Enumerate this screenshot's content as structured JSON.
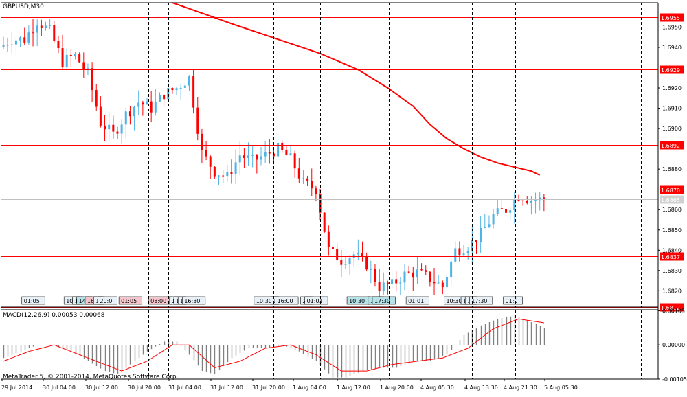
{
  "window": {
    "symbol_label": "GBPUSD,M30",
    "copyright": "MetaTrader 5, © 2001-2014, MetaQuotes Software Corp."
  },
  "colors": {
    "background": "#ffffff",
    "bull": "#4fb3e6",
    "bear": "#ff0000",
    "level_line": "#ff0000",
    "ma_line": "#ff0000",
    "current_price_line": "#c0c0c0",
    "macd_histogram": "#808080",
    "macd_signal": "#ff0000",
    "grid": "#000000"
  },
  "chart_data": [
    {
      "type": "candlestick",
      "pane": "price",
      "ylim": [
        1.6812,
        1.6962
      ],
      "y_ticks": [
        "1.6950",
        "1.6940",
        "1.6920",
        "1.6910",
        "1.6900",
        "1.6880",
        "1.6860",
        "1.6850",
        "1.6840",
        "1.6830",
        "1.6820"
      ],
      "x_labels": [
        "29 Jul 2014",
        "30 Jul 04:00",
        "30 Jul 12:00",
        "30 Jul 20:00",
        "31 Jul 04:00",
        "31 Jul 12:00",
        "31 Jul 20:00",
        "1 Aug 04:00",
        "1 Aug 12:00",
        "1 Aug 20:00",
        "4 Aug 05:30",
        "4 Aug 13:30",
        "4 Aug 21:30",
        "5 Aug 05:30"
      ],
      "levels": [
        {
          "label": "1.6955",
          "value": 1.6955
        },
        {
          "label": "1.6929",
          "value": 1.6929
        },
        {
          "label": "1.6892",
          "value": 1.6892
        },
        {
          "label": "1.6870",
          "value": 1.687
        },
        {
          "label": "1.6837",
          "value": 1.6837
        },
        {
          "label": "1.6812",
          "value": 1.6812
        }
      ],
      "current_price": {
        "label": "1.6865",
        "value": 1.6865
      },
      "moving_average": {
        "x": [
          40,
          55,
          65,
          75,
          84,
          91,
          97,
          101,
          105,
          109,
          113,
          117,
          121,
          125,
          127
        ],
        "y": [
          1.6962,
          1.6951,
          1.6944,
          1.6937,
          1.6929,
          1.692,
          1.6911,
          1.6902,
          1.6895,
          1.689,
          1.6886,
          1.6883,
          1.6881,
          1.6879,
          1.6877
        ]
      },
      "anchors": [
        [
          0,
          1.694
        ],
        [
          3,
          1.6944
        ],
        [
          6,
          1.6944
        ],
        [
          9,
          1.6953
        ],
        [
          12,
          1.6948
        ],
        [
          15,
          1.6933
        ],
        [
          18,
          1.6936
        ],
        [
          21,
          1.6927
        ],
        [
          24,
          1.6903
        ],
        [
          27,
          1.6897
        ],
        [
          30,
          1.6907
        ],
        [
          33,
          1.6913
        ],
        [
          36,
          1.691
        ],
        [
          39,
          1.6917
        ],
        [
          42,
          1.692
        ],
        [
          45,
          1.6925
        ],
        [
          48,
          1.6888
        ],
        [
          51,
          1.6879
        ],
        [
          54,
          1.6876
        ],
        [
          57,
          1.6887
        ],
        [
          60,
          1.6884
        ],
        [
          63,
          1.6887
        ],
        [
          66,
          1.689
        ],
        [
          69,
          1.6885
        ],
        [
          72,
          1.6873
        ],
        [
          75,
          1.687
        ],
        [
          78,
          1.684
        ],
        [
          81,
          1.6835
        ],
        [
          84,
          1.6838
        ],
        [
          87,
          1.6833
        ],
        [
          90,
          1.6822
        ],
        [
          93,
          1.6823
        ],
        [
          96,
          1.6828
        ],
        [
          99,
          1.6829
        ],
        [
          102,
          1.6826
        ],
        [
          105,
          1.6822
        ],
        [
          108,
          1.684
        ],
        [
          111,
          1.6842
        ],
        [
          114,
          1.6848
        ],
        [
          117,
          1.6857
        ],
        [
          120,
          1.686
        ],
        [
          123,
          1.6867
        ],
        [
          126,
          1.6865
        ],
        [
          128,
          1.6865
        ]
      ],
      "bars": 129
    },
    {
      "type": "histogram+line",
      "pane": "indicator",
      "title": "MACD(12,26,9) 0.00053 0.00068",
      "ylim": [
        -0.00105,
        0.00108
      ],
      "y_ticks": [
        "0.00105",
        "0.00000",
        "-0.00105"
      ],
      "zero_line": 0.0,
      "main_anchors": [
        [
          0,
          -0.0004
        ],
        [
          4,
          -0.0002
        ],
        [
          8,
          0.0
        ],
        [
          12,
          0.0
        ],
        [
          16,
          -0.0002
        ],
        [
          20,
          -0.0005
        ],
        [
          24,
          -0.0008
        ],
        [
          27,
          -0.0009
        ],
        [
          30,
          -0.0006
        ],
        [
          34,
          -0.0002
        ],
        [
          38,
          0.0001
        ],
        [
          41,
          0.0001
        ],
        [
          44,
          -0.0003
        ],
        [
          47,
          -0.0008
        ],
        [
          50,
          -0.0009
        ],
        [
          54,
          -0.0004
        ],
        [
          58,
          -0.0001
        ],
        [
          62,
          -0.0001
        ],
        [
          66,
          0.0
        ],
        [
          70,
          -0.0002
        ],
        [
          74,
          -0.0005
        ],
        [
          78,
          -0.001
        ],
        [
          81,
          -0.001
        ],
        [
          85,
          -0.0008
        ],
        [
          89,
          -0.0007
        ],
        [
          93,
          -0.0007
        ],
        [
          97,
          -0.0005
        ],
        [
          101,
          -0.0005
        ],
        [
          105,
          -0.0003
        ],
        [
          109,
          0.0003
        ],
        [
          113,
          0.0006
        ],
        [
          117,
          0.0008
        ],
        [
          121,
          0.0009
        ],
        [
          125,
          0.0007
        ],
        [
          128,
          0.00053
        ]
      ],
      "signal_anchors": [
        [
          0,
          -0.0005
        ],
        [
          6,
          -0.0002
        ],
        [
          12,
          0.0
        ],
        [
          18,
          -0.0003
        ],
        [
          24,
          -0.0006
        ],
        [
          28,
          -0.0008
        ],
        [
          34,
          -0.0005
        ],
        [
          40,
          0.0
        ],
        [
          44,
          0.0
        ],
        [
          50,
          -0.0007
        ],
        [
          56,
          -0.0005
        ],
        [
          62,
          -0.0001
        ],
        [
          68,
          0.0
        ],
        [
          74,
          -0.0003
        ],
        [
          80,
          -0.0008
        ],
        [
          86,
          -0.0008
        ],
        [
          92,
          -0.0006
        ],
        [
          98,
          -0.0005
        ],
        [
          104,
          -0.0004
        ],
        [
          110,
          -0.0001
        ],
        [
          116,
          0.0005
        ],
        [
          122,
          0.0008
        ],
        [
          128,
          0.00068
        ]
      ]
    }
  ],
  "event_markers": [
    {
      "bar": 5,
      "label": "01:05",
      "color": "#e8f0f8"
    },
    {
      "bar": 15,
      "label": "10:3",
      "color": "#e8f0f8"
    },
    {
      "bar": 17,
      "label": "1",
      "color": "#e8f0f8"
    },
    {
      "bar": 18,
      "label": "14:",
      "color": "#b6e3ea"
    },
    {
      "bar": 20,
      "label": "16:3",
      "color": "#f4c6cc"
    },
    {
      "bar": 22,
      "label": "1",
      "color": "#e8f0f8"
    },
    {
      "bar": 23,
      "label": "20:0",
      "color": "#e8f0f8"
    },
    {
      "bar": 28,
      "label": "01:05",
      "color": "#f4c6cc"
    },
    {
      "bar": 35,
      "label": "08:00",
      "color": "#f4c6cc"
    },
    {
      "bar": 40,
      "label": "1",
      "color": "#e8f0f8"
    },
    {
      "bar": 41,
      "label": "1",
      "color": "#e8f0f8"
    },
    {
      "bar": 42,
      "label": "1",
      "color": "#e8f0f8"
    },
    {
      "bar": 43,
      "label": "16:30",
      "color": "#e8f0f8"
    },
    {
      "bar": 60,
      "label": "10:30",
      "color": "#e8f0f8"
    },
    {
      "bar": 64,
      "label": "1",
      "color": "#e8f0f8"
    },
    {
      "bar": 65,
      "label": "16:00",
      "color": "#e8f0f8"
    },
    {
      "bar": 71,
      "label": "22",
      "color": "#e8f0f8"
    },
    {
      "bar": 72,
      "label": "01:01",
      "color": "#e8f0f8"
    },
    {
      "bar": 82,
      "label": "10:30",
      "color": "#b6e3ea"
    },
    {
      "bar": 87,
      "label": "15:",
      "color": "#b6e3ea"
    },
    {
      "bar": 88,
      "label": "17:30",
      "color": "#b6e3ea"
    },
    {
      "bar": 96,
      "label": "01:01",
      "color": "#e8f0f8"
    },
    {
      "bar": 105,
      "label": "10:30",
      "color": "#e8f0f8"
    },
    {
      "bar": 109,
      "label": "1",
      "color": "#e8f0f8"
    },
    {
      "bar": 110,
      "label": "16",
      "color": "#e8f0f8"
    },
    {
      "bar": 111,
      "label": "17:30",
      "color": "#e8f0f8"
    },
    {
      "bar": 119,
      "label": "01:0",
      "color": "#e8f0f8"
    }
  ]
}
